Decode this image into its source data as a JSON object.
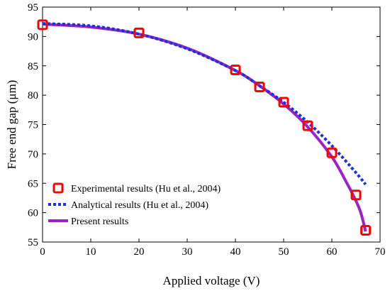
{
  "chart_data": {
    "type": "line",
    "title": "",
    "xlabel": "Applied voltage (V)",
    "ylabel": "Free end gap (μm)",
    "xlim": [
      0,
      70
    ],
    "ylim": [
      55,
      95
    ],
    "xticks": [
      0,
      10,
      20,
      30,
      40,
      50,
      60,
      70
    ],
    "yticks": [
      55,
      60,
      65,
      70,
      75,
      80,
      85,
      90,
      95
    ],
    "grid": false,
    "legend_position": "bottom-left",
    "series": [
      {
        "name": "Experimental results (Hu et al., 2004)",
        "kind": "markers",
        "marker": "square",
        "color": "#ff0000",
        "x": [
          0,
          20,
          40,
          45,
          50,
          55,
          60,
          65,
          67
        ],
        "y": [
          92,
          90.6,
          84.3,
          81.4,
          78.8,
          74.8,
          70.2,
          63.0,
          57.0
        ]
      },
      {
        "name": "Analytical results  (Hu et al., 2004)",
        "kind": "line",
        "dash": "dotted",
        "color": "#1a33d9",
        "x": [
          0,
          10,
          20,
          30,
          40,
          45,
          50,
          55,
          60,
          65,
          67
        ],
        "y": [
          92.2,
          91.8,
          90.4,
          87.9,
          84.2,
          81.6,
          78.8,
          75.4,
          71.4,
          66.8,
          64.8
        ]
      },
      {
        "name": "Present results",
        "kind": "line",
        "dash": "solid",
        "color": "#a020c8",
        "x": [
          0,
          10,
          20,
          30,
          40,
          45,
          50,
          55,
          60,
          63,
          65,
          66,
          67
        ],
        "y": [
          92.1,
          91.6,
          90.4,
          88.0,
          84.2,
          81.6,
          78.5,
          74.6,
          69.5,
          65.2,
          62.0,
          60.0,
          56.8
        ]
      }
    ]
  }
}
